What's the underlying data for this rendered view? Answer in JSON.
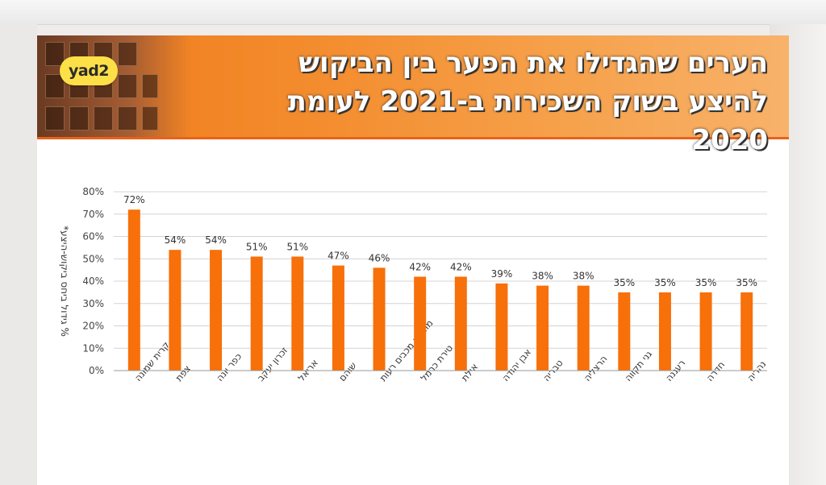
{
  "header": {
    "logo_text": "yad2",
    "title_line1": "הערים שהגדילו את הפער בין הביקוש",
    "title_line2": "להיצע בשוק השכירות ב-2021 לעומת 2020"
  },
  "colors": {
    "bar": "#f7700a",
    "banner": "#f07a1c"
  },
  "chart_data": {
    "type": "bar",
    "ylabel": "% גידול ביחס ביקוש-היצע*",
    "ylim": [
      0,
      80
    ],
    "yticks": [
      "0%",
      "10%",
      "20%",
      "30%",
      "40%",
      "50%",
      "60%",
      "70%",
      "80%"
    ],
    "grid": true,
    "categories": [
      "קרית שמונה",
      "צפת",
      "כפר יונה",
      "זכרון יעקב",
      "אריאל",
      "שוהם",
      "מודיעין מכבים רעות",
      "טירת כרמל",
      "אילת",
      "אבן יהודה",
      "טבריה",
      "הרצליה",
      "גני תקווה",
      "רעננה",
      "חדרה",
      "נהריה"
    ],
    "values": [
      72,
      54,
      54,
      51,
      51,
      47,
      46,
      42,
      42,
      39,
      38,
      38,
      35,
      35,
      35,
      35
    ],
    "data_labels": [
      "72%",
      "54%",
      "54%",
      "51%",
      "51%",
      "47%",
      "46%",
      "42%",
      "42%",
      "39%",
      "38%",
      "38%",
      "35%",
      "35%",
      "35%",
      "35%"
    ]
  }
}
